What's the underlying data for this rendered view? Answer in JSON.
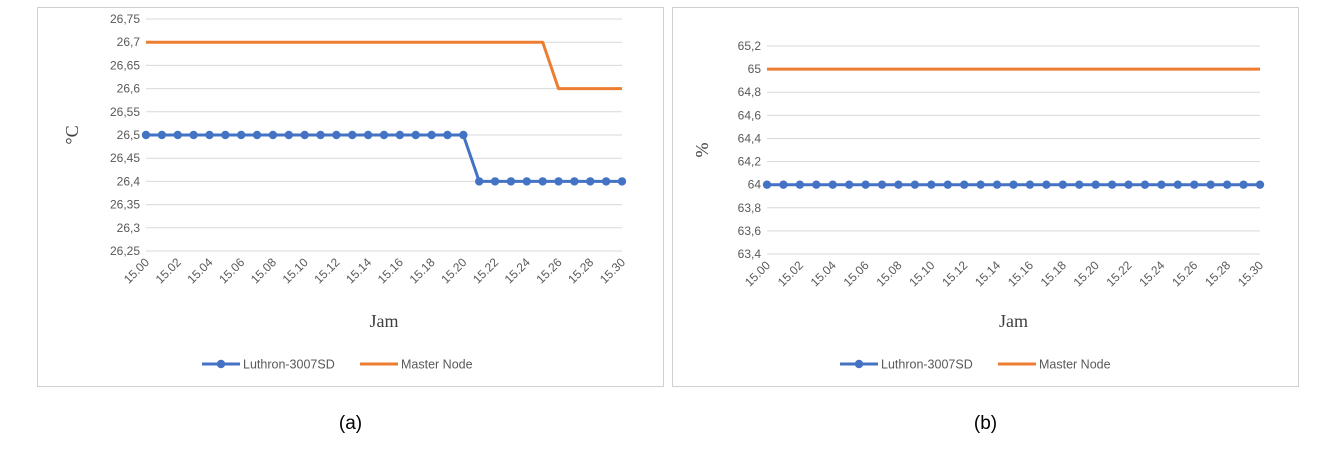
{
  "chart_data": [
    {
      "type": "line",
      "caption": "(a)",
      "ylabel": "°C",
      "xlabel": "Jam",
      "ylim": [
        26.25,
        26.75
      ],
      "yticks": [
        "26,25",
        "26,3",
        "26,35",
        "26,4",
        "26,45",
        "26,5",
        "26,55",
        "26,6",
        "26,65",
        "26,7",
        "26,75"
      ],
      "x_tick_labels": [
        "15.00",
        "15.02",
        "15.04",
        "15.06",
        "15.08",
        "15.10",
        "15.12",
        "15.14",
        "15.16",
        "15.18",
        "15.20",
        "15.22",
        "15.24",
        "15.26",
        "15.28",
        "15.30"
      ],
      "x": [
        "15.00",
        "15.01",
        "15.02",
        "15.03",
        "15.04",
        "15.05",
        "15.06",
        "15.07",
        "15.08",
        "15.09",
        "15.10",
        "15.11",
        "15.12",
        "15.13",
        "15.14",
        "15.15",
        "15.16",
        "15.17",
        "15.18",
        "15.19",
        "15.20",
        "15.21",
        "15.22",
        "15.23",
        "15.24",
        "15.25",
        "15.26",
        "15.27",
        "15.28",
        "15.29",
        "15.30"
      ],
      "grid": true,
      "legend": "bottom",
      "series": [
        {
          "name": "Luthron-3007SD",
          "color": "#4472C4",
          "marker": true,
          "values": [
            26.5,
            26.5,
            26.5,
            26.5,
            26.5,
            26.5,
            26.5,
            26.5,
            26.5,
            26.5,
            26.5,
            26.5,
            26.5,
            26.5,
            26.5,
            26.5,
            26.5,
            26.5,
            26.5,
            26.5,
            26.5,
            26.4,
            26.4,
            26.4,
            26.4,
            26.4,
            26.4,
            26.4,
            26.4,
            26.4,
            26.4
          ]
        },
        {
          "name": "Master Node",
          "color": "#ED7D31",
          "marker": false,
          "values": [
            26.7,
            26.7,
            26.7,
            26.7,
            26.7,
            26.7,
            26.7,
            26.7,
            26.7,
            26.7,
            26.7,
            26.7,
            26.7,
            26.7,
            26.7,
            26.7,
            26.7,
            26.7,
            26.7,
            26.7,
            26.7,
            26.7,
            26.7,
            26.7,
            26.7,
            26.7,
            26.6,
            26.6,
            26.6,
            26.6,
            26.6
          ]
        }
      ]
    },
    {
      "type": "line",
      "caption": "(b)",
      "ylabel": "%",
      "xlabel": "Jam",
      "ylim": [
        63.4,
        65.2
      ],
      "yticks": [
        "63,4",
        "63,6",
        "63,8",
        "64",
        "64,2",
        "64,4",
        "64,6",
        "64,8",
        "65",
        "65,2"
      ],
      "x_tick_labels": [
        "15.00",
        "15.02",
        "15.04",
        "15.06",
        "15.08",
        "15.10",
        "15.12",
        "15.14",
        "15.16",
        "15.18",
        "15.20",
        "15.22",
        "15.24",
        "15.26",
        "15.28",
        "15.30"
      ],
      "x": [
        "15.00",
        "15.01",
        "15.02",
        "15.03",
        "15.04",
        "15.05",
        "15.06",
        "15.07",
        "15.08",
        "15.09",
        "15.10",
        "15.11",
        "15.12",
        "15.13",
        "15.14",
        "15.15",
        "15.16",
        "15.17",
        "15.18",
        "15.19",
        "15.20",
        "15.21",
        "15.22",
        "15.23",
        "15.24",
        "15.25",
        "15.26",
        "15.27",
        "15.28",
        "15.29",
        "15.30"
      ],
      "grid": true,
      "legend": "bottom",
      "series": [
        {
          "name": "Luthron-3007SD",
          "color": "#4472C4",
          "marker": true,
          "values": [
            64,
            64,
            64,
            64,
            64,
            64,
            64,
            64,
            64,
            64,
            64,
            64,
            64,
            64,
            64,
            64,
            64,
            64,
            64,
            64,
            64,
            64,
            64,
            64,
            64,
            64,
            64,
            64,
            64,
            64,
            64
          ]
        },
        {
          "name": "Master Node",
          "color": "#ED7D31",
          "marker": false,
          "values": [
            65,
            65,
            65,
            65,
            65,
            65,
            65,
            65,
            65,
            65,
            65,
            65,
            65,
            65,
            65,
            65,
            65,
            65,
            65,
            65,
            65,
            65,
            65,
            65,
            65,
            65,
            65,
            65,
            65,
            65,
            65
          ]
        }
      ]
    }
  ]
}
